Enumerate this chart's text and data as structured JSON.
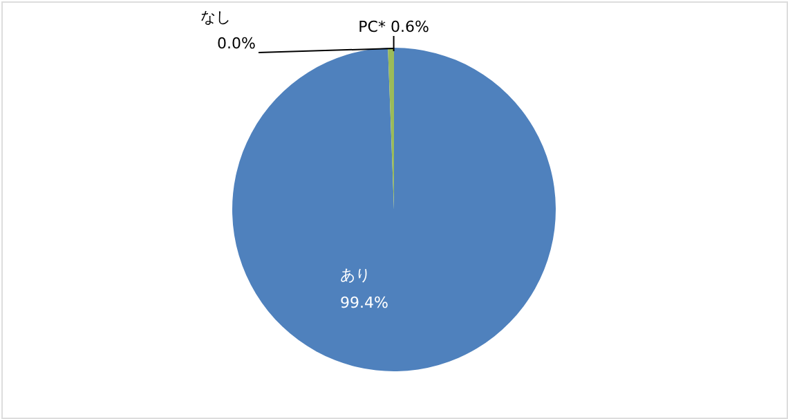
{
  "chart_data": {
    "type": "pie",
    "categories": [
      "あり",
      "PC*",
      "なし"
    ],
    "values": [
      99.4,
      0.6,
      0.0
    ],
    "colors": [
      "#4f81bd",
      "#9bbb59",
      "#c0504d"
    ],
    "value_labels": [
      "99.4%",
      "0.6%",
      "0.0%"
    ]
  }
}
